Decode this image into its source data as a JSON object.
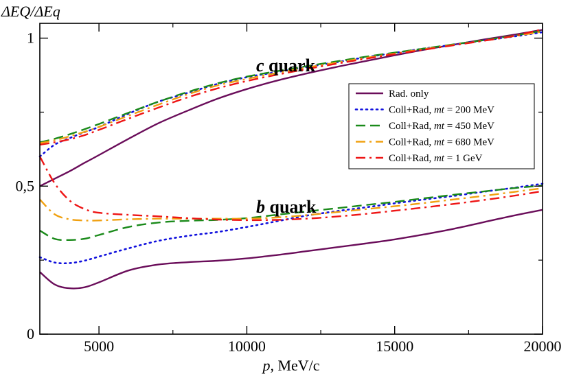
{
  "chart_data": {
    "type": "line",
    "ylabel": "ΔEQ/ΔEq",
    "xlabel": "p, MeV/c",
    "xlim": [
      3000,
      20000
    ],
    "ylim": [
      0,
      1.05
    ],
    "x_ticks": [
      5000,
      10000,
      15000,
      20000
    ],
    "x_tick_labels": [
      "5000",
      "10000",
      "15000",
      "20000"
    ],
    "y_ticks": [
      0,
      0.5,
      1
    ],
    "y_tick_labels": [
      "0",
      "0,5",
      "1"
    ],
    "grid": false,
    "legend_position": "right, middle-upper",
    "annotations": [
      {
        "text": "c quark",
        "x": 10800,
        "y": 0.935
      },
      {
        "text": "b quark",
        "x": 10800,
        "y": 0.44
      }
    ],
    "x": [
      3000,
      3500,
      4000,
      4500,
      5000,
      6000,
      7000,
      8000,
      9000,
      10000,
      11000,
      12000,
      13000,
      14000,
      15000,
      16000,
      17000,
      18000,
      19000,
      20000
    ],
    "series": [
      {
        "name": "Rad. only",
        "color": "#6a0d5a",
        "dash": "solid",
        "group": "c quark",
        "values": [
          0.5,
          0.525,
          0.55,
          0.578,
          0.605,
          0.66,
          0.712,
          0.755,
          0.795,
          0.828,
          0.856,
          0.88,
          0.902,
          0.922,
          0.942,
          0.961,
          0.978,
          0.995,
          1.011,
          1.028
        ]
      },
      {
        "name": "Coll+Rad, mt = 200 MeV",
        "color": "#1010dd",
        "dash": "dotted",
        "group": "c quark",
        "values": [
          0.6,
          0.64,
          0.662,
          0.682,
          0.7,
          0.745,
          0.785,
          0.815,
          0.845,
          0.868,
          0.885,
          0.902,
          0.918,
          0.935,
          0.95,
          0.965,
          0.978,
          0.992,
          1.005,
          1.02
        ]
      },
      {
        "name": "Coll+Rad, mt = 450 MeV",
        "color": "#1a8a1a",
        "dash": "dashed",
        "group": "c quark",
        "values": [
          0.648,
          0.66,
          0.675,
          0.692,
          0.71,
          0.748,
          0.785,
          0.818,
          0.847,
          0.87,
          0.888,
          0.905,
          0.921,
          0.937,
          0.951,
          0.965,
          0.979,
          0.993,
          1.008,
          1.025
        ]
      },
      {
        "name": "Coll+Rad, mt = 680 MeV",
        "color": "#f0a010",
        "dash": "dashdot",
        "group": "c quark",
        "values": [
          0.645,
          0.655,
          0.668,
          0.683,
          0.7,
          0.738,
          0.775,
          0.81,
          0.84,
          0.862,
          0.882,
          0.9,
          0.917,
          0.933,
          0.948,
          0.963,
          0.977,
          0.991,
          1.006,
          1.022
        ]
      },
      {
        "name": "Coll+Rad, mt = 1 GeV",
        "color": "#ee1515",
        "dash": "dashdot",
        "group": "c quark",
        "values": [
          0.64,
          0.648,
          0.658,
          0.672,
          0.69,
          0.728,
          0.765,
          0.8,
          0.83,
          0.855,
          0.876,
          0.895,
          0.913,
          0.93,
          0.946,
          0.961,
          0.976,
          0.991,
          1.007,
          1.03
        ]
      },
      {
        "name": "Rad. only",
        "color": "#6a0d5a",
        "dash": "solid",
        "group": "b quark",
        "values": [
          0.21,
          0.168,
          0.155,
          0.158,
          0.175,
          0.215,
          0.235,
          0.243,
          0.248,
          0.256,
          0.267,
          0.28,
          0.293,
          0.306,
          0.32,
          0.337,
          0.356,
          0.378,
          0.4,
          0.42
        ]
      },
      {
        "name": "Coll+Rad, mt = 200 MeV",
        "color": "#1010dd",
        "dash": "dotted",
        "group": "b quark",
        "values": [
          0.26,
          0.242,
          0.24,
          0.248,
          0.262,
          0.29,
          0.315,
          0.332,
          0.345,
          0.362,
          0.381,
          0.4,
          0.415,
          0.428,
          0.442,
          0.455,
          0.467,
          0.481,
          0.494,
          0.508
        ]
      },
      {
        "name": "Coll+Rad, mt = 450 MeV",
        "color": "#1a8a1a",
        "dash": "dashed",
        "group": "b quark",
        "values": [
          0.35,
          0.322,
          0.318,
          0.322,
          0.335,
          0.362,
          0.377,
          0.383,
          0.386,
          0.392,
          0.403,
          0.414,
          0.425,
          0.436,
          0.447,
          0.459,
          0.471,
          0.482,
          0.493,
          0.502
        ]
      },
      {
        "name": "Coll+Rad, mt = 680 MeV",
        "color": "#f0a010",
        "dash": "dashdot",
        "group": "b quark",
        "values": [
          0.455,
          0.405,
          0.388,
          0.384,
          0.384,
          0.388,
          0.39,
          0.39,
          0.39,
          0.39,
          0.394,
          0.402,
          0.412,
          0.422,
          0.432,
          0.443,
          0.455,
          0.467,
          0.48,
          0.493
        ]
      },
      {
        "name": "Coll+Rad, mt = 1 GeV",
        "color": "#ee1515",
        "dash": "dashdot",
        "group": "b quark",
        "values": [
          0.6,
          0.51,
          0.452,
          0.423,
          0.41,
          0.403,
          0.398,
          0.392,
          0.387,
          0.385,
          0.386,
          0.39,
          0.397,
          0.406,
          0.417,
          0.428,
          0.44,
          0.453,
          0.467,
          0.483
        ]
      }
    ],
    "legend": [
      {
        "label_pre": "Coll+Rad, ",
        "label_it": "",
        "label_post": "",
        "label": "Rad. only",
        "color": "#6a0d5a",
        "dash": "solid"
      },
      {
        "label_pre": "Coll+Rad, ",
        "label_it": "mt",
        "label_post": " = 200 MeV",
        "color": "#1010dd",
        "dash": "dotted"
      },
      {
        "label_pre": "Coll+Rad, ",
        "label_it": "mt",
        "label_post": " = 450 MeV",
        "color": "#1a8a1a",
        "dash": "dashed"
      },
      {
        "label_pre": "Coll+Rad, ",
        "label_it": "mt",
        "label_post": " = 680 MeV",
        "color": "#f0a010",
        "dash": "dashdot"
      },
      {
        "label_pre": "Coll+Rad, ",
        "label_it": "mt",
        "label_post": " = 1 GeV",
        "color": "#ee1515",
        "dash": "dashdot"
      }
    ]
  }
}
